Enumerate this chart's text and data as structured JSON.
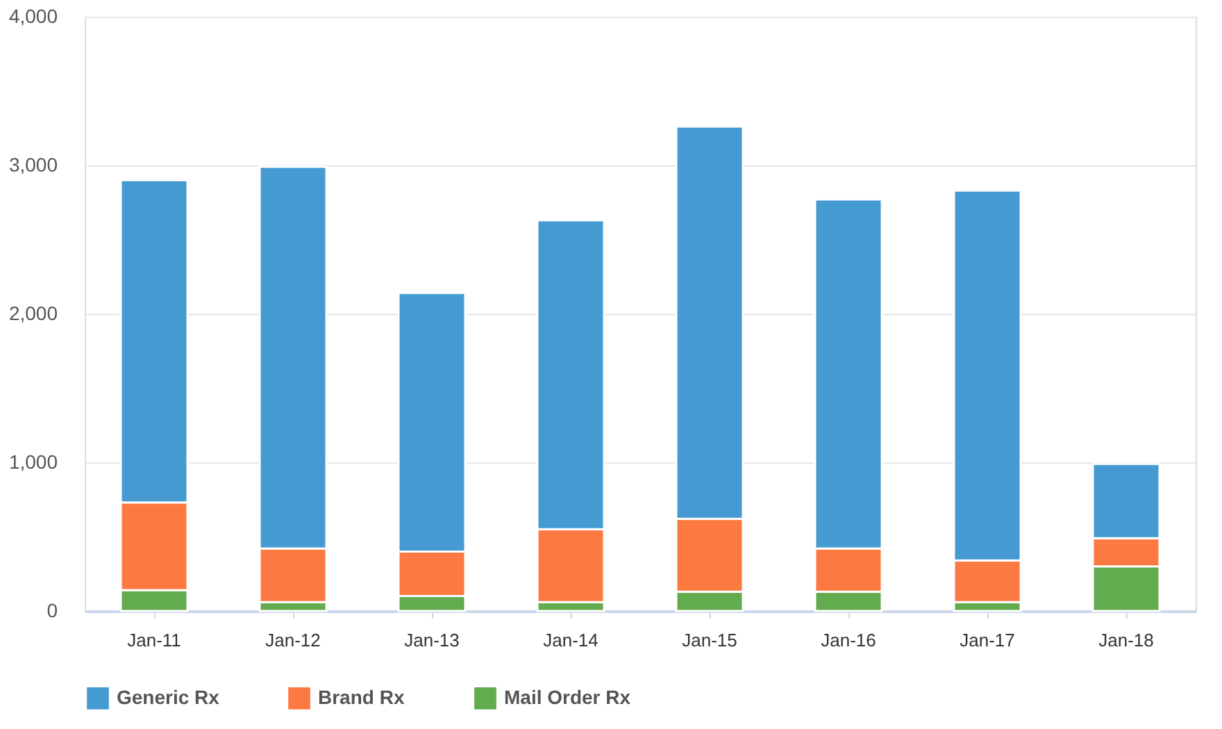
{
  "chart_data": {
    "type": "bar",
    "stacked": true,
    "categories": [
      "Jan-11",
      "Jan-12",
      "Jan-13",
      "Jan-14",
      "Jan-15",
      "Jan-16",
      "Jan-17",
      "Jan-18"
    ],
    "series": [
      {
        "name": "Mail Order Rx",
        "color": "#62ab4f",
        "values": [
          140,
          60,
          100,
          60,
          130,
          130,
          60,
          300
        ]
      },
      {
        "name": "Brand Rx",
        "color": "#fc7a41",
        "values": [
          590,
          360,
          300,
          490,
          490,
          290,
          280,
          190
        ]
      },
      {
        "name": "Generic Rx",
        "color": "#459bd1",
        "values": [
          2170,
          2570,
          1740,
          2080,
          2640,
          2350,
          2490,
          500
        ]
      }
    ],
    "ylim": [
      0,
      4000
    ],
    "yticks": [
      0,
      {
        "value": 1000,
        "label": "1,000"
      },
      {
        "value": 2000,
        "label": "2,000"
      },
      {
        "value": 3000,
        "label": "3,000"
      },
      {
        "value": 4000,
        "label": "4,000"
      }
    ],
    "grid": "y",
    "legend": "bottom"
  }
}
